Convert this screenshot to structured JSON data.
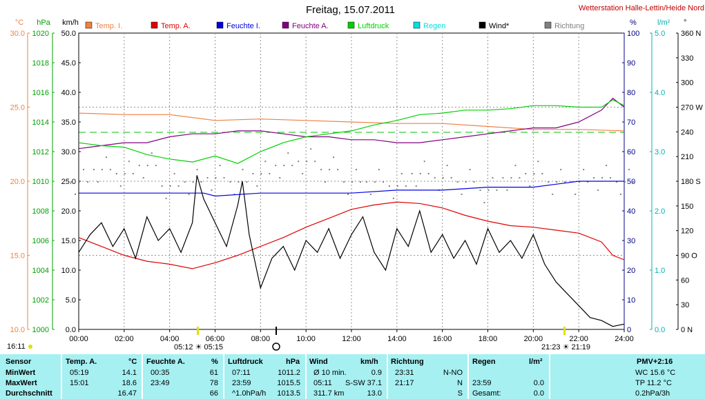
{
  "header": {
    "title": "Freitag, 15.07.2011",
    "station": "Wetterstation Halle-Lettin/Heide Nord",
    "station_color": "#c00000"
  },
  "axes_units": {
    "temp": "°C",
    "press": "hPa",
    "wind": "km/h",
    "hum": "%",
    "rain": "l/m²",
    "dir": "°"
  },
  "legend": [
    {
      "label": "Temp. I.",
      "color": "#f08040"
    },
    {
      "label": "Temp. A.",
      "color": "#e00000"
    },
    {
      "label": "Feuchte I.",
      "color": "#0000e0"
    },
    {
      "label": "Feuchte A.",
      "color": "#800080"
    },
    {
      "label": "Luftdruck",
      "color": "#00d000"
    },
    {
      "label": "Regen",
      "color": "#00e0e0"
    },
    {
      "label": "Wind*",
      "color": "#000000"
    },
    {
      "label": "Richtung",
      "color": "#808080"
    }
  ],
  "markers": {
    "current_time": "16:11",
    "sun_times": "05:12 ☀ 05:15",
    "sun_times_evening": "21:23 ☀ 21:19"
  },
  "chart_data": {
    "type": "line",
    "title": "Freitag, 15.07.2011",
    "x_unit": "hour",
    "x_ticks": [
      "00:00",
      "02:00",
      "04:00",
      "06:00",
      "08:00",
      "10:00",
      "12:00",
      "14:00",
      "16:00",
      "18:00",
      "20:00",
      "22:00",
      "24:00"
    ],
    "xlim": [
      0,
      24
    ],
    "axes": {
      "temp": {
        "label": "°C",
        "ylim": [
          10,
          30
        ],
        "ticks": [
          "30.0",
          "25.0",
          "20.0",
          "15.0",
          "10.0"
        ],
        "color": "#f08040"
      },
      "press": {
        "label": "hPa",
        "ylim": [
          1000,
          1020
        ],
        "ticks": [
          "1020",
          "1018",
          "1016",
          "1014",
          "1012",
          "1010",
          "1008",
          "1006",
          "1004",
          "1002",
          "1000"
        ],
        "color": "#00a000"
      },
      "wind": {
        "label": "km/h",
        "ylim": [
          0,
          50
        ],
        "ticks": [
          "50.0",
          "45.0",
          "40.0",
          "35.0",
          "30.0",
          "25.0",
          "20.0",
          "15.0",
          "10.0",
          "5.0",
          "0.0"
        ],
        "color": "#000000"
      },
      "hum": {
        "label": "%",
        "ylim": [
          0,
          100
        ],
        "ticks": [
          "100",
          "90",
          "80",
          "70",
          "60",
          "50",
          "40",
          "30",
          "20",
          "10",
          "0"
        ],
        "color": "#000080"
      },
      "rain": {
        "label": "l/m²",
        "ylim": [
          0,
          5
        ],
        "ticks": [
          "5.0",
          "4.0",
          "3.0",
          "2.0",
          "1.0",
          "0.0"
        ],
        "color": "#00b0b0"
      },
      "dir": {
        "label": "°",
        "ylim": [
          0,
          360
        ],
        "ticks": [
          "360 N",
          "330",
          "300",
          "270 W",
          "240",
          "210",
          "180 S",
          "150",
          "120",
          "90 O",
          "60",
          "30",
          "0 N"
        ],
        "color": "#000000"
      }
    },
    "reference_lines": {
      "temp_dashed": 23.3,
      "press_dashed": 1013.3
    },
    "series": [
      {
        "name": "Temp. I.",
        "axis": "temp",
        "color": "#f08040",
        "x": [
          0,
          2,
          4,
          6,
          8,
          10,
          12,
          14,
          16,
          18,
          20,
          22,
          24
        ],
        "y": [
          24.6,
          24.5,
          24.5,
          24.1,
          24.2,
          24.1,
          24.0,
          23.9,
          23.9,
          23.7,
          23.5,
          23.5,
          23.4
        ]
      },
      {
        "name": "Temp. A.",
        "axis": "temp",
        "color": "#e00000",
        "x": [
          0,
          1,
          2,
          3,
          4,
          5,
          6,
          7,
          8,
          9,
          10,
          11,
          12,
          13,
          14,
          15,
          16,
          17,
          18,
          19,
          20,
          21,
          22,
          23,
          23.5,
          24
        ],
        "y": [
          16.2,
          15.6,
          15.0,
          14.6,
          14.4,
          14.1,
          14.5,
          15.0,
          15.6,
          16.2,
          16.9,
          17.5,
          18.1,
          18.4,
          18.6,
          18.5,
          18.2,
          17.7,
          17.3,
          17.0,
          16.9,
          16.7,
          16.5,
          15.9,
          15.0,
          14.7
        ]
      },
      {
        "name": "Feuchte I.",
        "axis": "hum",
        "color": "#0000e0",
        "x": [
          0,
          2,
          4,
          5.5,
          6,
          8,
          10,
          12,
          14,
          16,
          18,
          20,
          21,
          22,
          24
        ],
        "y": [
          46,
          46,
          46,
          46,
          45,
          46,
          46,
          46,
          47,
          47,
          48,
          48,
          49,
          50,
          50
        ]
      },
      {
        "name": "Feuchte A.",
        "axis": "hum",
        "color": "#800080",
        "x": [
          0,
          1,
          2,
          3,
          4,
          5,
          6,
          7,
          8,
          9,
          10,
          11,
          12,
          13,
          14,
          15,
          16,
          17,
          18,
          19,
          20,
          21,
          22,
          23,
          23.5,
          24
        ],
        "y": [
          61,
          62,
          63,
          63,
          65,
          66,
          66,
          67,
          67,
          66,
          65,
          65,
          64,
          64,
          63,
          63,
          64,
          65,
          66,
          67,
          68,
          68,
          70,
          74,
          78,
          75
        ]
      },
      {
        "name": "Luftdruck",
        "axis": "press",
        "color": "#00d000",
        "x": [
          0,
          1,
          2,
          3,
          4,
          5,
          6,
          7,
          8,
          9,
          10,
          11,
          12,
          13,
          14,
          15,
          16,
          17,
          18,
          19,
          20,
          21,
          22,
          23,
          23.5,
          24
        ],
        "y": [
          1012.6,
          1012.4,
          1012.3,
          1011.8,
          1011.5,
          1011.3,
          1011.7,
          1011.2,
          1012.0,
          1012.6,
          1013.0,
          1013.2,
          1013.4,
          1013.8,
          1014.1,
          1014.5,
          1014.6,
          1014.8,
          1014.8,
          1014.9,
          1015.1,
          1015.1,
          1015.0,
          1015.0,
          1015.5,
          1015.1
        ]
      },
      {
        "name": "Wind*",
        "axis": "wind",
        "color": "#000000",
        "x": [
          0,
          0.5,
          1,
          1.5,
          2,
          2.5,
          3,
          3.5,
          4,
          4.5,
          5,
          5.2,
          5.5,
          6,
          6.5,
          7,
          7.2,
          7.5,
          8,
          8.5,
          9,
          9.5,
          10,
          10.5,
          11,
          11.5,
          12,
          12.5,
          13,
          13.5,
          14,
          14.5,
          15,
          15.5,
          16,
          16.5,
          17,
          17.5,
          18,
          18.5,
          19,
          19.5,
          20,
          20.5,
          21,
          21.5,
          22,
          22.5,
          23,
          23.5,
          24
        ],
        "y": [
          13,
          16,
          18,
          14,
          17,
          12,
          19,
          15,
          17,
          13,
          18,
          26,
          22,
          18,
          14,
          21,
          25,
          16,
          7,
          12,
          14,
          10,
          15,
          13,
          17,
          12,
          16,
          19,
          13,
          10,
          17,
          14,
          20,
          13,
          16,
          12,
          15,
          11,
          17,
          13,
          15,
          12,
          16,
          11,
          8,
          6,
          4,
          2,
          1.5,
          0.5,
          0.9
        ]
      },
      {
        "name": "Richtung",
        "axis": "dir",
        "color": "#808080",
        "x": [
          0,
          1,
          2,
          3,
          4,
          5,
          6,
          7,
          8,
          9,
          10,
          11,
          12,
          13,
          14,
          15,
          16,
          17,
          18,
          19,
          20,
          21,
          22,
          23,
          24
        ],
        "y": [
          180,
          195,
          190,
          200,
          175,
          180,
          185,
          180,
          190,
          200,
          205,
          195,
          180,
          180,
          175,
          190,
          185,
          180,
          170,
          185,
          190,
          180,
          180,
          185,
          180
        ]
      }
    ],
    "rain_series": {
      "name": "Regen",
      "axis": "rain",
      "values": [
        0
      ]
    }
  },
  "stats": {
    "headers": {
      "sensor": "Sensor",
      "temp": "Temp. A.",
      "temp_unit": "°C",
      "hum": "Feuchte A.",
      "hum_unit": "%",
      "press": "Luftdruck",
      "press_unit": "hPa",
      "wind": "Wind",
      "wind_unit": "km/h",
      "dir": "Richtung",
      "rain": "Regen",
      "rain_unit": "l/m²",
      "pmv": "PMV+2:16"
    },
    "rows": [
      {
        "label": "MinWert",
        "temp_time": "05:19",
        "temp_val": "14.1",
        "hum_time": "00:35",
        "hum_val": "61",
        "press_time": "07:11",
        "press_val": "1011.2",
        "wind_time": "Ø 10 min.",
        "wind_val": "0.9",
        "dir_time": "23:31",
        "dir_val": "N-NO",
        "rain_time": "",
        "rain_val": "",
        "pmv": "WC 15.6 °C"
      },
      {
        "label": "MaxWert",
        "temp_time": "15:01",
        "temp_val": "18.6",
        "hum_time": "23:49",
        "hum_val": "78",
        "press_time": "23:59",
        "press_val": "1015.5",
        "wind_time": "05:11",
        "wind_extra": "S-SW",
        "wind_val": "37.1",
        "dir_time": "21:17",
        "dir_val": "N",
        "rain_time": "23:59",
        "rain_val": "0.0",
        "pmv": "TP 11.2 °C"
      },
      {
        "label": "Durchschnitt",
        "temp_time": "",
        "temp_val": "16.47",
        "hum_time": "",
        "hum_val": "66",
        "press_time": "^1.0hPa/h",
        "press_val": "1013.5",
        "wind_time": "311.7 km",
        "wind_val": "13.0",
        "dir_time": "",
        "dir_val": "S",
        "rain_time": "Gesamt:",
        "rain_val": "0.0",
        "pmv": "0.2hPa/3h"
      }
    ]
  }
}
